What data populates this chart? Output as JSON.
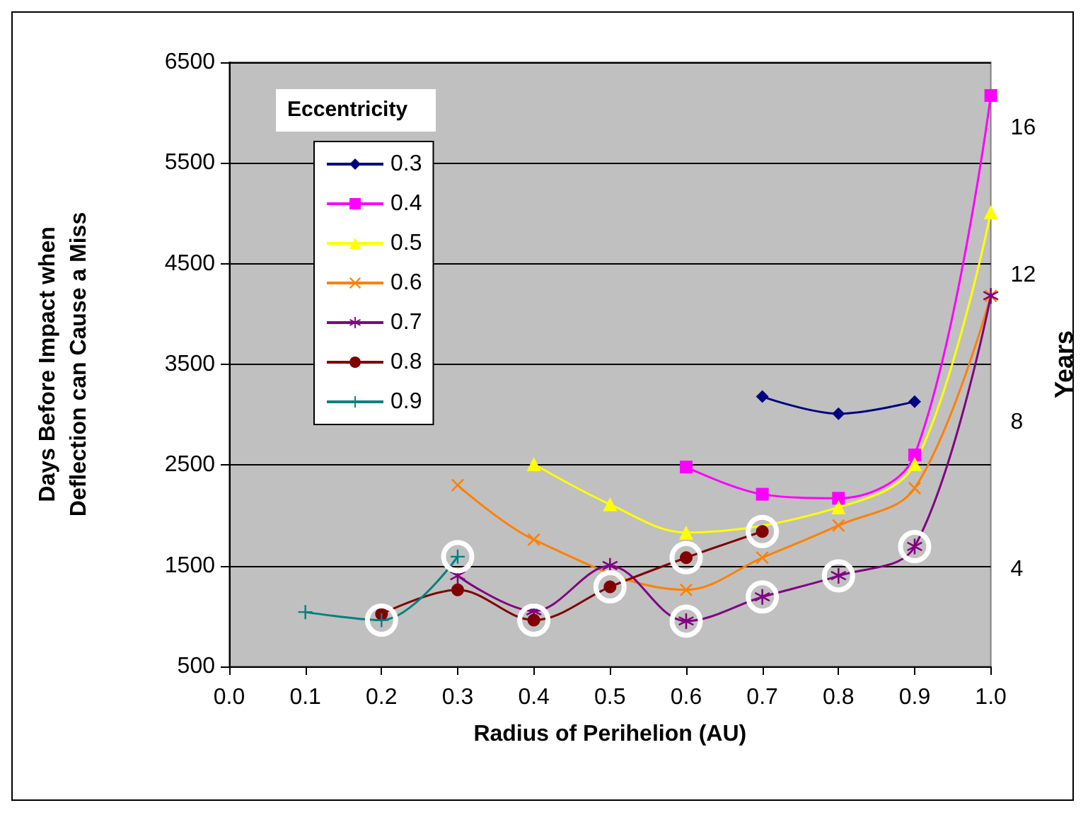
{
  "chart_data": {
    "type": "line",
    "xlabel": "Radius of Perihelion (AU)",
    "ylabel": "Days Before Impact when Deflection can Cause a Miss",
    "y2label": "Years",
    "legend_title": "Eccentricity",
    "legend": "top left",
    "grid": "y",
    "xlim": [
      0.0,
      1.0
    ],
    "xticks": [
      {
        "value": 0,
        "label": "0.0"
      },
      0.1,
      0.2,
      0.3,
      0.4,
      0.5,
      0.6,
      0.7,
      0.8,
      0.9,
      {
        "value": 1,
        "label": "1.0"
      }
    ],
    "ylim": [
      500,
      6500
    ],
    "yticks": [
      500,
      1500,
      2500,
      3500,
      4500,
      5500,
      6500
    ],
    "y2lim": [
      1.369,
      17.796
    ],
    "y2ticks": [
      4,
      8,
      12,
      16
    ],
    "series": [
      {
        "name": "0.3",
        "color": "#000080",
        "marker": "diamond",
        "x": [
          0.7,
          0.8,
          0.9
        ],
        "values": [
          3180,
          3010,
          3130
        ]
      },
      {
        "name": "0.4",
        "color": "#ff00ff",
        "marker": "square",
        "x": [
          0.6,
          0.7,
          0.8,
          0.9,
          1.0
        ],
        "values": [
          2480,
          2210,
          2170,
          2600,
          6170
        ]
      },
      {
        "name": "0.5",
        "color": "#ffff00",
        "marker": "triangle",
        "x": [
          0.4,
          0.5,
          0.6,
          0.7,
          0.8,
          0.9,
          1.0
        ],
        "values": [
          2510,
          2110,
          1830,
          null,
          2080,
          2510,
          5010
        ]
      },
      {
        "name": "0.6",
        "color": "#ff8000",
        "marker": "cross",
        "x": [
          0.3,
          0.4,
          0.5,
          0.6,
          0.7,
          0.8,
          0.9,
          1.0
        ],
        "values": [
          2300,
          1760,
          null,
          1260,
          1580,
          1900,
          2270,
          4180
        ]
      },
      {
        "name": "0.7",
        "color": "#800080",
        "marker": "star",
        "x": [
          0.3,
          0.4,
          0.5,
          0.6,
          0.7,
          0.8,
          0.9,
          1.0
        ],
        "values": [
          1400,
          1050,
          1500,
          950,
          1190,
          1400,
          1690,
          4180
        ]
      },
      {
        "name": "0.8",
        "color": "#800000",
        "marker": "circle",
        "x": [
          0.2,
          0.3,
          0.4,
          0.5,
          0.6,
          0.7
        ],
        "values": [
          1020,
          1260,
          960,
          1290,
          1580,
          1840
        ]
      },
      {
        "name": "0.9",
        "color": "#008080",
        "marker": "plus",
        "x": [
          0.1,
          0.2,
          0.3
        ],
        "values": [
          1040,
          960,
          1590
        ]
      }
    ]
  }
}
